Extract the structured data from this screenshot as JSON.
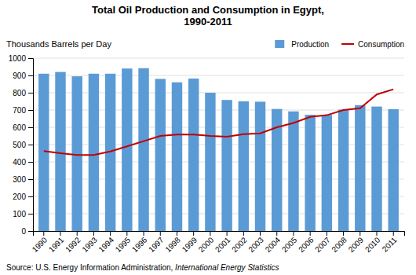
{
  "chart_data": {
    "type": "bar",
    "title": "Total Oil Production and Consumption in Egypt,\n1990-2011",
    "y_label": "Thousands Barrels per Day",
    "annotations": [
      "Source: U.S. Energy Information Administration, ",
      "International Energy Statistics"
    ],
    "categories": [
      "1990",
      "1991",
      "1992",
      "1993",
      "1994",
      "1995",
      "1996",
      "1997",
      "1998",
      "1999",
      "2000",
      "2001",
      "2002",
      "2003",
      "2004",
      "2005",
      "2006",
      "2007",
      "2008",
      "2009",
      "2010",
      "2011"
    ],
    "series": [
      {
        "name": "Production",
        "type": "bar",
        "color": "#5B9BD5",
        "values": [
          910,
          920,
          895,
          910,
          910,
          940,
          942,
          880,
          860,
          882,
          800,
          758,
          750,
          748,
          706,
          692,
          672,
          672,
          702,
          728,
          720,
          705
        ]
      },
      {
        "name": "Consumption",
        "type": "line",
        "color": "#C00000",
        "values": [
          462,
          450,
          440,
          440,
          460,
          490,
          520,
          550,
          558,
          558,
          550,
          545,
          560,
          565,
          600,
          625,
          660,
          670,
          700,
          710,
          790,
          820
        ]
      }
    ],
    "ylim": [
      0,
      1000
    ],
    "yticks": [
      0,
      100,
      200,
      300,
      400,
      500,
      600,
      700,
      800,
      900,
      1000
    ],
    "grid": true,
    "legend": "upper right"
  }
}
